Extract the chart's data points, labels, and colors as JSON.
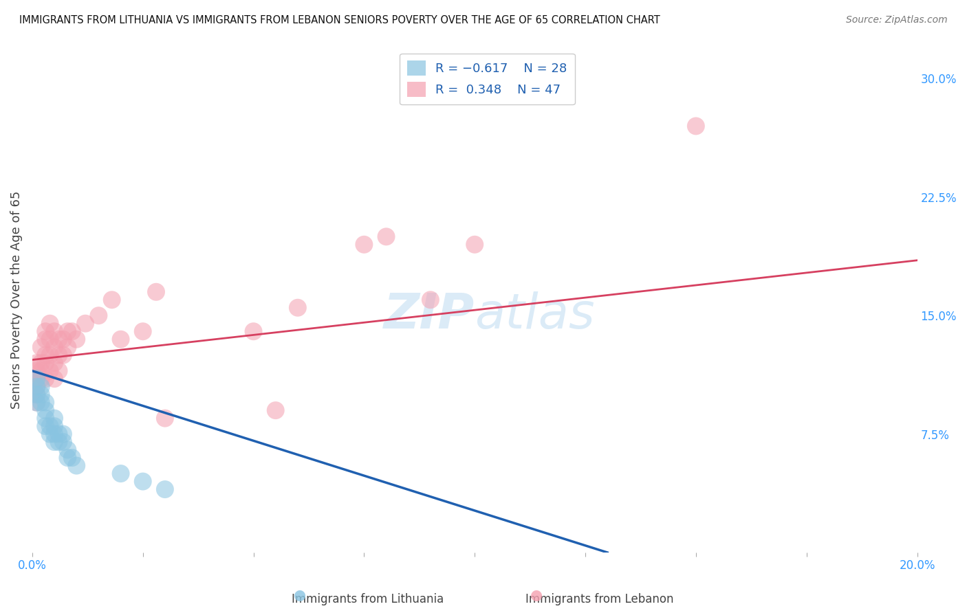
{
  "title": "IMMIGRANTS FROM LITHUANIA VS IMMIGRANTS FROM LEBANON SENIORS POVERTY OVER THE AGE OF 65 CORRELATION CHART",
  "source": "Source: ZipAtlas.com",
  "ylabel": "Seniors Poverty Over the Age of 65",
  "xlim": [
    0.0,
    0.2
  ],
  "ylim": [
    0.0,
    0.32
  ],
  "xticks": [
    0.0,
    0.025,
    0.05,
    0.075,
    0.1,
    0.125,
    0.15,
    0.175,
    0.2
  ],
  "xticklabels": [
    "0.0%",
    "",
    "",
    "",
    "",
    "",
    "",
    "",
    "20.0%"
  ],
  "yticks_right": [
    0.075,
    0.15,
    0.225,
    0.3
  ],
  "yticklabels_right": [
    "7.5%",
    "15.0%",
    "22.5%",
    "30.0%"
  ],
  "watermark": "ZIPatlas",
  "lithuania_color": "#89c4e1",
  "lebanon_color": "#f4a0b0",
  "lithuania_line_color": "#2060b0",
  "lebanon_line_color": "#d64060",
  "background_color": "#ffffff",
  "grid_color": "#c8c8c8",
  "lithuania_x": [
    0.001,
    0.001,
    0.001,
    0.001,
    0.002,
    0.002,
    0.002,
    0.003,
    0.003,
    0.003,
    0.003,
    0.004,
    0.004,
    0.005,
    0.005,
    0.005,
    0.005,
    0.006,
    0.006,
    0.007,
    0.007,
    0.008,
    0.008,
    0.009,
    0.01,
    0.02,
    0.025,
    0.03
  ],
  "lithuania_y": [
    0.11,
    0.105,
    0.1,
    0.095,
    0.105,
    0.1,
    0.095,
    0.095,
    0.09,
    0.085,
    0.08,
    0.08,
    0.075,
    0.085,
    0.08,
    0.075,
    0.07,
    0.075,
    0.07,
    0.075,
    0.07,
    0.065,
    0.06,
    0.06,
    0.055,
    0.05,
    0.045,
    0.04
  ],
  "lebanon_x": [
    0.001,
    0.001,
    0.001,
    0.001,
    0.001,
    0.001,
    0.002,
    0.002,
    0.002,
    0.002,
    0.003,
    0.003,
    0.003,
    0.003,
    0.003,
    0.004,
    0.004,
    0.004,
    0.004,
    0.005,
    0.005,
    0.005,
    0.005,
    0.006,
    0.006,
    0.006,
    0.007,
    0.007,
    0.008,
    0.008,
    0.009,
    0.01,
    0.012,
    0.015,
    0.018,
    0.02,
    0.025,
    0.028,
    0.03,
    0.05,
    0.055,
    0.06,
    0.075,
    0.08,
    0.09,
    0.1,
    0.15
  ],
  "lebanon_y": [
    0.12,
    0.115,
    0.11,
    0.105,
    0.1,
    0.095,
    0.13,
    0.12,
    0.115,
    0.11,
    0.14,
    0.135,
    0.125,
    0.12,
    0.11,
    0.145,
    0.135,
    0.125,
    0.115,
    0.14,
    0.13,
    0.12,
    0.11,
    0.135,
    0.125,
    0.115,
    0.135,
    0.125,
    0.14,
    0.13,
    0.14,
    0.135,
    0.145,
    0.15,
    0.16,
    0.135,
    0.14,
    0.165,
    0.085,
    0.14,
    0.09,
    0.155,
    0.195,
    0.2,
    0.16,
    0.195,
    0.27
  ],
  "lith_line_x0": 0.0,
  "lith_line_y0": 0.115,
  "lith_line_x1": 0.13,
  "lith_line_y1": 0.0,
  "leb_line_x0": 0.0,
  "leb_line_y0": 0.122,
  "leb_line_x1": 0.2,
  "leb_line_y1": 0.185
}
